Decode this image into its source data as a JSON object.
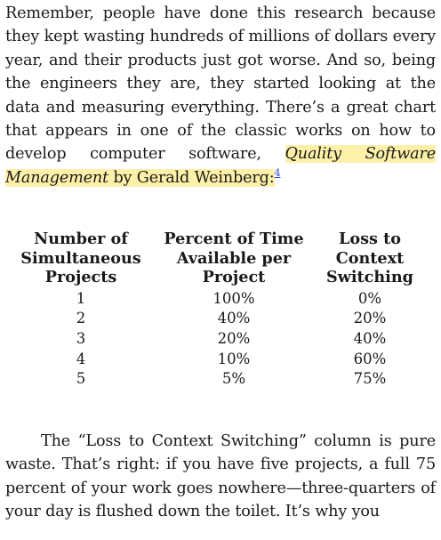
{
  "paragraph1": {
    "text_before": "Remember, people have done this research because they kept wasting hundreds of millions of dollars every year, and their products just got worse. And so, being the engineers they are, they started looking at the data and measuring everything. There’s a great chart that appears in one of the classic works on how to develop computer software, ",
    "book_title": "Quality Software Management",
    "author_text": " by Gerald Weinberg:",
    "footnote": "4"
  },
  "table": {
    "headers": [
      [
        "Number of",
        "Simultaneous",
        "Projects"
      ],
      [
        "Percent of Time",
        "Available per",
        "Project"
      ],
      [
        "Loss to",
        "Context",
        "Switching"
      ]
    ],
    "rows": [
      [
        "1",
        "100%",
        "0%"
      ],
      [
        "2",
        "40%",
        "20%"
      ],
      [
        "3",
        "20%",
        "40%"
      ],
      [
        "4",
        "10%",
        "60%"
      ],
      [
        "5",
        "5%",
        "75%"
      ]
    ]
  },
  "paragraph2": {
    "text": "The “Loss to Context Switching” column is pure waste. That’s right: if you have five projects, a full 75 percent of your work goes nowhere—three-quarters of your day is flushed down the toilet. It’s why you"
  },
  "colors": {
    "highlight": "#fdf0a8",
    "link": "#2a4bd7"
  }
}
